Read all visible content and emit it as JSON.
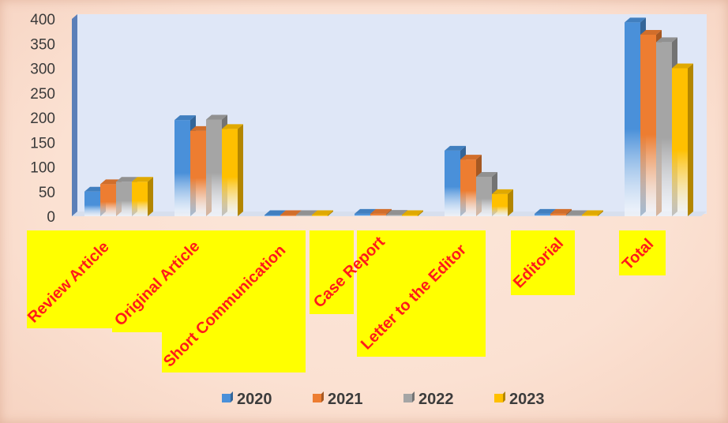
{
  "chart_data": {
    "type": "bar",
    "title": "",
    "xlabel": "",
    "ylabel": "",
    "ylim": [
      0,
      400
    ],
    "yticks": [
      0,
      50,
      100,
      150,
      200,
      250,
      300,
      350,
      400
    ],
    "grid": false,
    "legend_position": "bottom",
    "categories": [
      "Review Article",
      "Original Article",
      "Short Communication",
      "Case Report",
      "Letter to the Editor",
      "Editorial",
      "Total"
    ],
    "series": [
      {
        "name": "2020",
        "color": "#4a90d9",
        "values": [
          50,
          195,
          2,
          5,
          133,
          5,
          393
        ]
      },
      {
        "name": "2021",
        "color": "#ed7d31",
        "values": [
          65,
          173,
          0,
          5,
          115,
          5,
          368
        ]
      },
      {
        "name": "2022",
        "color": "#a5a5a5",
        "values": [
          70,
          196,
          0,
          3,
          80,
          1,
          353
        ]
      },
      {
        "name": "2023",
        "color": "#ffc000",
        "values": [
          70,
          177,
          0,
          2,
          45,
          2,
          300
        ]
      }
    ],
    "category_label_style": {
      "text_color": "#ff1a1a",
      "highlight": "#ffff00"
    }
  }
}
